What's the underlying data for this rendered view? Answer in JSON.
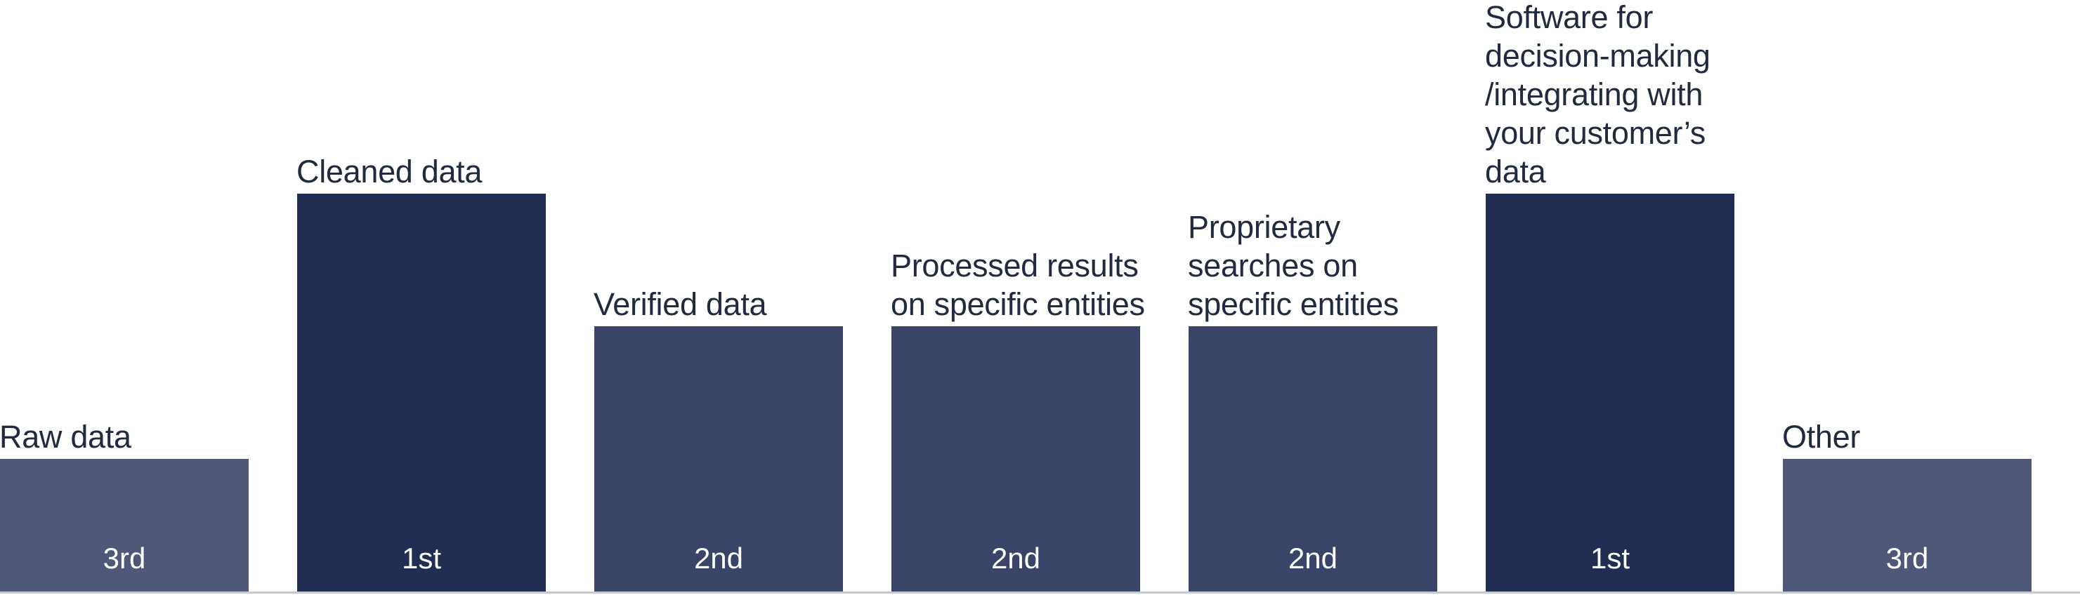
{
  "chart_data": {
    "type": "bar",
    "categories": [
      "Raw data",
      "Cleaned data",
      "Verified data",
      "Processed results\non specific entities",
      "Proprietary\nsearches on\nspecific entities",
      "Software for\ndecision-making\n/integrating with\nyour customer’s\ndata",
      "Other"
    ],
    "values": [
      1,
      3,
      2,
      2,
      2,
      3,
      1
    ],
    "data_labels": [
      "3rd",
      "1st",
      "2nd",
      "2nd",
      "2nd",
      "1st",
      "3rd"
    ],
    "ylim": [
      0,
      3
    ],
    "grid": false,
    "legend": "none",
    "colors": {
      "1st": "#222d54",
      "2nd": "#3a4468",
      "3rd": "#4f5878",
      "label_text": "#222a3f",
      "baseline": "#c6c9d3"
    }
  }
}
